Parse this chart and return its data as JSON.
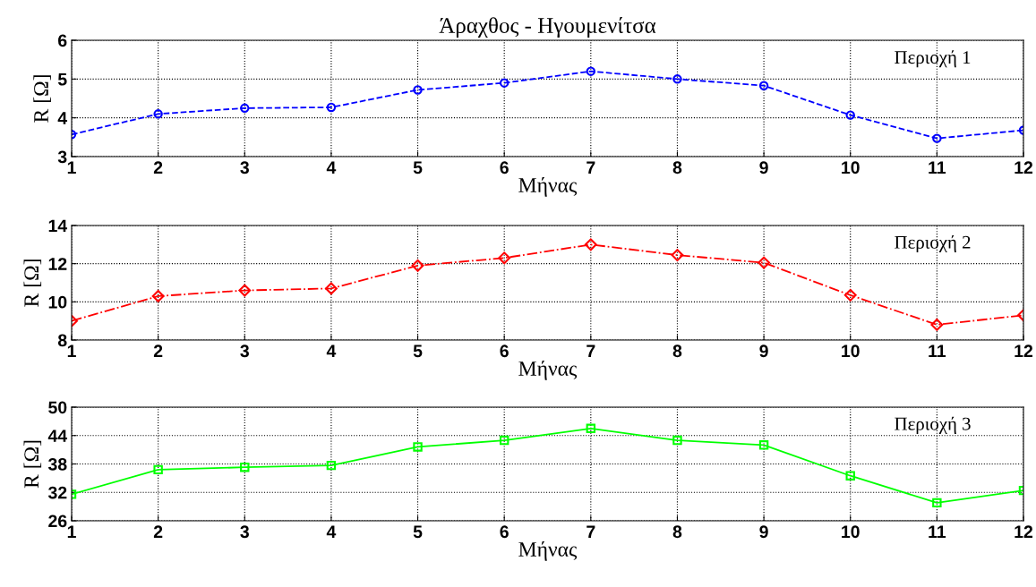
{
  "chart_data": [
    {
      "type": "line",
      "title": "Άραχθος - Ηγουμενίτσα",
      "xlabel": "Μήνας",
      "ylabel": "R [Ω]",
      "x": [
        1,
        2,
        3,
        4,
        5,
        6,
        7,
        8,
        9,
        10,
        11,
        12
      ],
      "series": [
        {
          "color": "#0000ff",
          "values": [
            3.57,
            4.1,
            4.25,
            4.27,
            4.72,
            4.9,
            5.2,
            5.0,
            4.83,
            4.07,
            3.47,
            3.68
          ]
        }
      ],
      "marker": "circle",
      "line_style": "dashed",
      "xlim": [
        1,
        12
      ],
      "xticks": [
        1,
        2,
        3,
        4,
        5,
        6,
        7,
        8,
        9,
        10,
        11,
        12
      ],
      "ylim": [
        3,
        6
      ],
      "yticks": [
        3,
        4,
        5,
        6
      ],
      "grid": true,
      "annotations": [
        "Περιοχή 1"
      ]
    },
    {
      "type": "line",
      "xlabel": "Μήνας",
      "ylabel": "R [Ω]",
      "x": [
        1,
        2,
        3,
        4,
        5,
        6,
        7,
        8,
        9,
        10,
        11,
        12
      ],
      "series": [
        {
          "color": "#ff0000",
          "values": [
            9.0,
            10.3,
            10.6,
            10.7,
            11.9,
            12.3,
            13.0,
            12.45,
            12.05,
            10.35,
            8.8,
            9.3
          ]
        }
      ],
      "marker": "diamond",
      "line_style": "dashdot",
      "xlim": [
        1,
        12
      ],
      "xticks": [
        1,
        2,
        3,
        4,
        5,
        6,
        7,
        8,
        9,
        10,
        11,
        12
      ],
      "ylim": [
        8,
        14
      ],
      "yticks": [
        8,
        10,
        12,
        14
      ],
      "grid": true,
      "annotations": [
        "Περιοχή 2"
      ]
    },
    {
      "type": "line",
      "xlabel": "Μήνας",
      "ylabel": "R [Ω]",
      "x": [
        1,
        2,
        3,
        4,
        5,
        6,
        7,
        8,
        9,
        10,
        11,
        12
      ],
      "series": [
        {
          "color": "#00ff00",
          "values": [
            31.6,
            36.8,
            37.3,
            37.7,
            41.6,
            43.0,
            45.5,
            43.0,
            42.0,
            35.5,
            29.8,
            32.4
          ]
        }
      ],
      "marker": "square",
      "line_style": "solid",
      "xlim": [
        1,
        12
      ],
      "xticks": [
        1,
        2,
        3,
        4,
        5,
        6,
        7,
        8,
        9,
        10,
        11,
        12
      ],
      "ylim": [
        26,
        50
      ],
      "yticks": [
        26,
        32,
        38,
        44,
        50
      ],
      "grid": true,
      "annotations": [
        "Περιοχή 3"
      ]
    }
  ]
}
